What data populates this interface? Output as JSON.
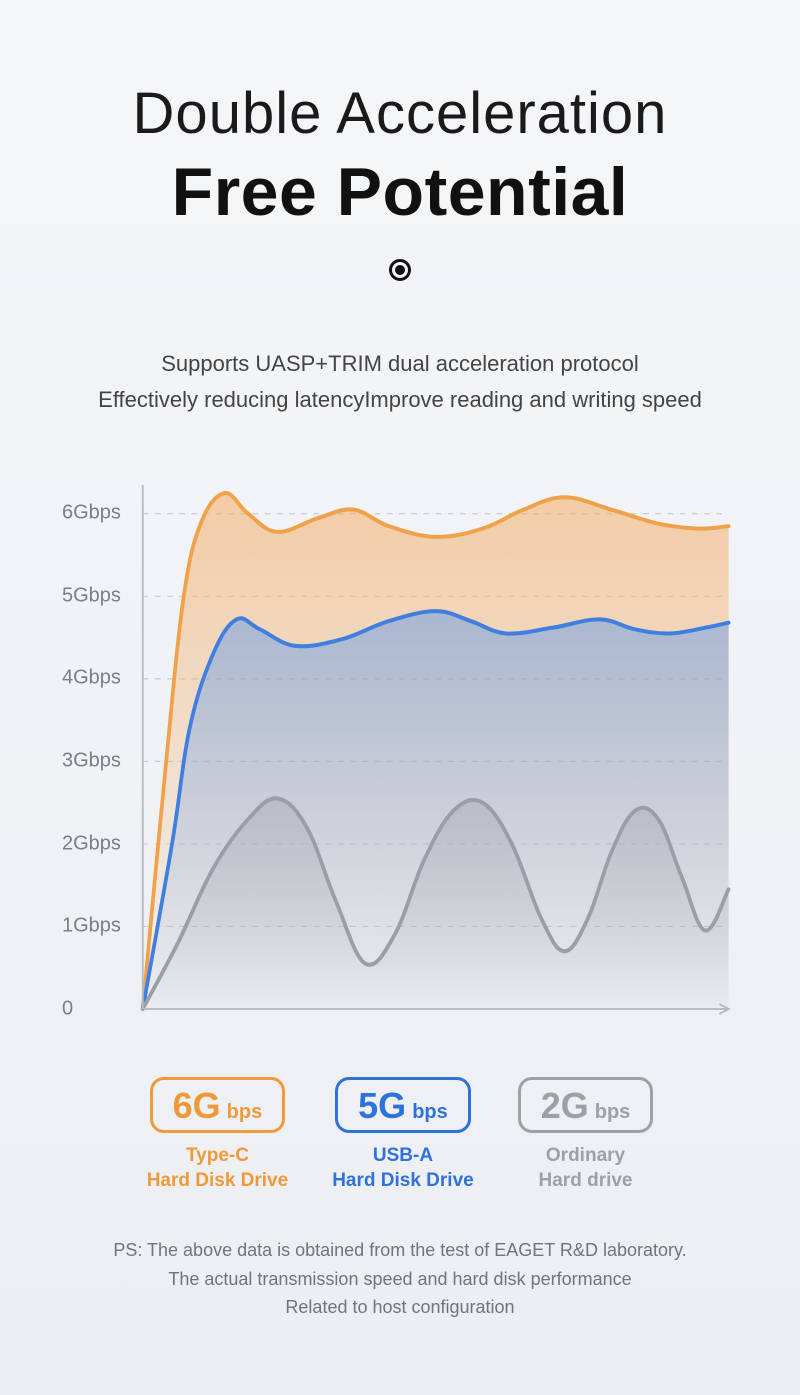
{
  "header": {
    "title_line1": "Double Acceleration",
    "title_line2": "Free Potential"
  },
  "subtitle": {
    "line1": "Supports UASP+TRIM dual acceleration protocol",
    "line2": "Effectively reducing latencyImprove reading and writing speed"
  },
  "chart": {
    "type": "area",
    "ylim": [
      0,
      6.3
    ],
    "ytick_labels": [
      "0",
      "1Gbps",
      "2Gbps",
      "3Gbps",
      "4Gbps",
      "5Gbps",
      "6Gbps"
    ],
    "ytick_values": [
      0,
      1,
      2,
      3,
      4,
      5,
      6
    ],
    "xrange": [
      0,
      100
    ],
    "grid_color": "#c8cad0",
    "axis_color": "#b8bbc2",
    "background": "transparent",
    "label_fontsize": 20,
    "series": [
      {
        "name": "type-c",
        "stroke": "#f0a24a",
        "fill_top": "rgba(242,172,100,0.55)",
        "fill_bottom": "rgba(242,172,100,0.02)",
        "line_width": 4,
        "points": [
          [
            0,
            0
          ],
          [
            4,
            3.0
          ],
          [
            7,
            5.0
          ],
          [
            10,
            5.9
          ],
          [
            14,
            6.25
          ],
          [
            18,
            6.0
          ],
          [
            23,
            5.78
          ],
          [
            30,
            5.95
          ],
          [
            36,
            6.05
          ],
          [
            42,
            5.85
          ],
          [
            50,
            5.72
          ],
          [
            58,
            5.82
          ],
          [
            65,
            6.05
          ],
          [
            72,
            6.2
          ],
          [
            80,
            6.05
          ],
          [
            88,
            5.88
          ],
          [
            95,
            5.82
          ],
          [
            100,
            5.85
          ]
        ]
      },
      {
        "name": "usb-a",
        "stroke": "#3f7fe0",
        "fill_top": "rgba(110,160,230,0.55)",
        "fill_bottom": "rgba(110,160,230,0.02)",
        "line_width": 4,
        "points": [
          [
            0,
            0
          ],
          [
            5,
            2.0
          ],
          [
            8,
            3.4
          ],
          [
            12,
            4.3
          ],
          [
            16,
            4.72
          ],
          [
            20,
            4.6
          ],
          [
            26,
            4.4
          ],
          [
            34,
            4.48
          ],
          [
            42,
            4.7
          ],
          [
            50,
            4.82
          ],
          [
            56,
            4.7
          ],
          [
            62,
            4.55
          ],
          [
            70,
            4.62
          ],
          [
            78,
            4.72
          ],
          [
            84,
            4.6
          ],
          [
            90,
            4.55
          ],
          [
            96,
            4.62
          ],
          [
            100,
            4.68
          ]
        ]
      },
      {
        "name": "ordinary",
        "stroke": "#9a9ea7",
        "fill_top": "rgba(170,174,182,0.55)",
        "fill_bottom": "rgba(170,174,182,0.02)",
        "line_width": 4,
        "points": [
          [
            0,
            0
          ],
          [
            6,
            0.8
          ],
          [
            12,
            1.7
          ],
          [
            18,
            2.3
          ],
          [
            23,
            2.55
          ],
          [
            28,
            2.2
          ],
          [
            33,
            1.3
          ],
          [
            38,
            0.55
          ],
          [
            43,
            0.9
          ],
          [
            48,
            1.8
          ],
          [
            53,
            2.4
          ],
          [
            58,
            2.5
          ],
          [
            63,
            2.0
          ],
          [
            68,
            1.1
          ],
          [
            72,
            0.7
          ],
          [
            76,
            1.1
          ],
          [
            80,
            1.9
          ],
          [
            84,
            2.4
          ],
          [
            88,
            2.3
          ],
          [
            92,
            1.6
          ],
          [
            96,
            0.95
          ],
          [
            100,
            1.45
          ]
        ]
      }
    ]
  },
  "legend": [
    {
      "big": "6G",
      "unit": "bps",
      "sub1": "Type-C",
      "sub2": "Hard Disk Drive",
      "color": "#ef9a3a"
    },
    {
      "big": "5G",
      "unit": "bps",
      "sub1": "USB-A",
      "sub2": "Hard Disk Drive",
      "color": "#2f72dc"
    },
    {
      "big": "2G",
      "unit": "bps",
      "sub1": "Ordinary",
      "sub2": "Hard drive",
      "color": "#9ca0a9"
    }
  ],
  "footnote": {
    "line1": "PS: The above data is obtained from the test of EAGET R&D laboratory.",
    "line2": "The actual transmission speed and hard disk performance",
    "line3": "Related to host configuration"
  }
}
